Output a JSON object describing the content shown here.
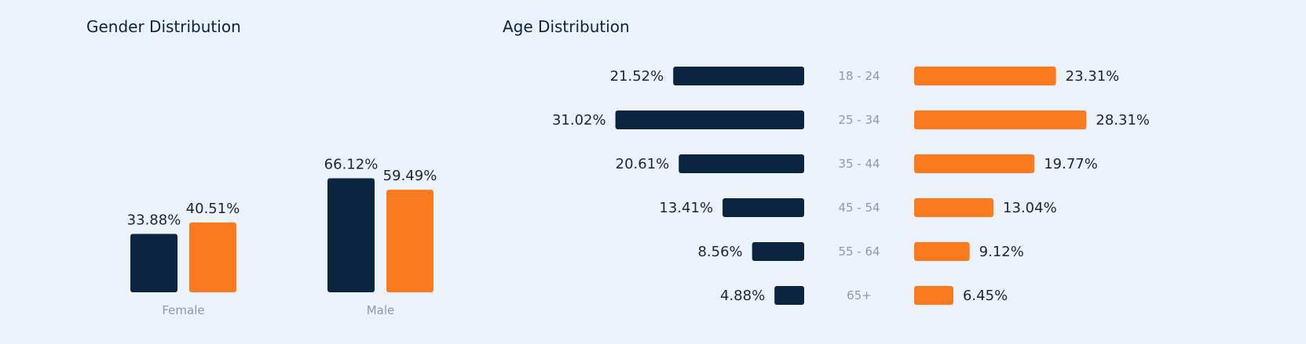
{
  "colors": {
    "series_a": "#0b2440",
    "series_b": "#fa7a1d",
    "label": "#1d2733",
    "category": "#8e98a6"
  },
  "gender": {
    "title": "Gender Distribution"
  },
  "age": {
    "title": "Age Distribution"
  },
  "chart_data": [
    {
      "type": "bar",
      "title": "Gender Distribution",
      "categories": [
        "Female",
        "Male"
      ],
      "series": [
        {
          "values": [
            33.88,
            66.12
          ],
          "labels": [
            "33.88%",
            "66.12%"
          ]
        },
        {
          "values": [
            40.51,
            59.49
          ],
          "labels": [
            "40.51%",
            "59.49%"
          ]
        }
      ],
      "ylim": [
        0,
        100
      ],
      "grid": false,
      "legend": "none"
    },
    {
      "type": "bar",
      "orientation": "horizontal",
      "title": "Age Distribution",
      "categories": [
        "18 - 24",
        "25 - 34",
        "35 - 44",
        "45 - 54",
        "55 - 64",
        "65+"
      ],
      "series": [
        {
          "values": [
            21.52,
            31.02,
            20.61,
            13.41,
            8.56,
            4.88
          ],
          "labels": [
            "21.52%",
            "31.02%",
            "20.61%",
            "13.41%",
            "8.56%",
            "4.88%"
          ]
        },
        {
          "values": [
            23.31,
            28.31,
            19.77,
            13.04,
            9.12,
            6.45
          ],
          "labels": [
            "23.31%",
            "28.31%",
            "19.77%",
            "13.04%",
            "9.12%",
            "6.45%"
          ]
        }
      ],
      "grid": false,
      "legend": "none"
    }
  ]
}
